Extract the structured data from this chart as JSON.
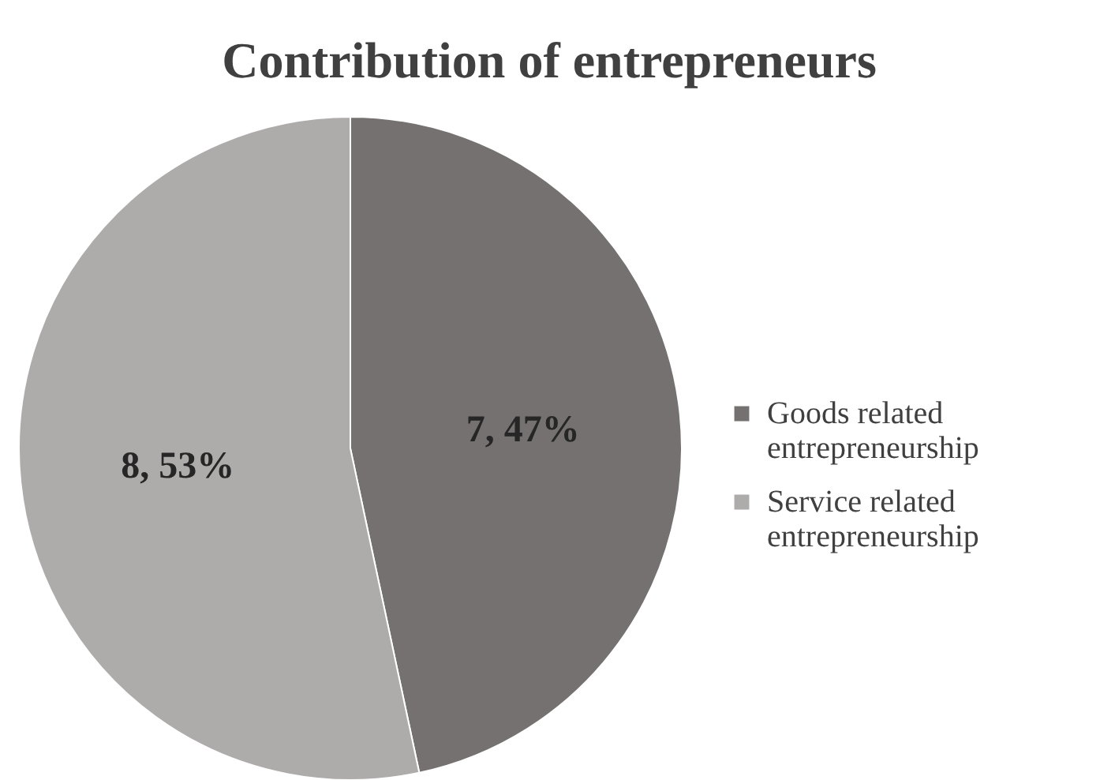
{
  "chart_data": {
    "type": "pie",
    "title": "Contribution of entrepreneurs",
    "categories": [
      "Goods related entrepreneurship",
      "Service related entrepreneurship"
    ],
    "values": [
      7,
      8
    ],
    "colors": [
      "#767171",
      "#aeabab"
    ],
    "value_labels": [
      "7, 47%",
      "8, 53%"
    ],
    "legend": "right"
  }
}
